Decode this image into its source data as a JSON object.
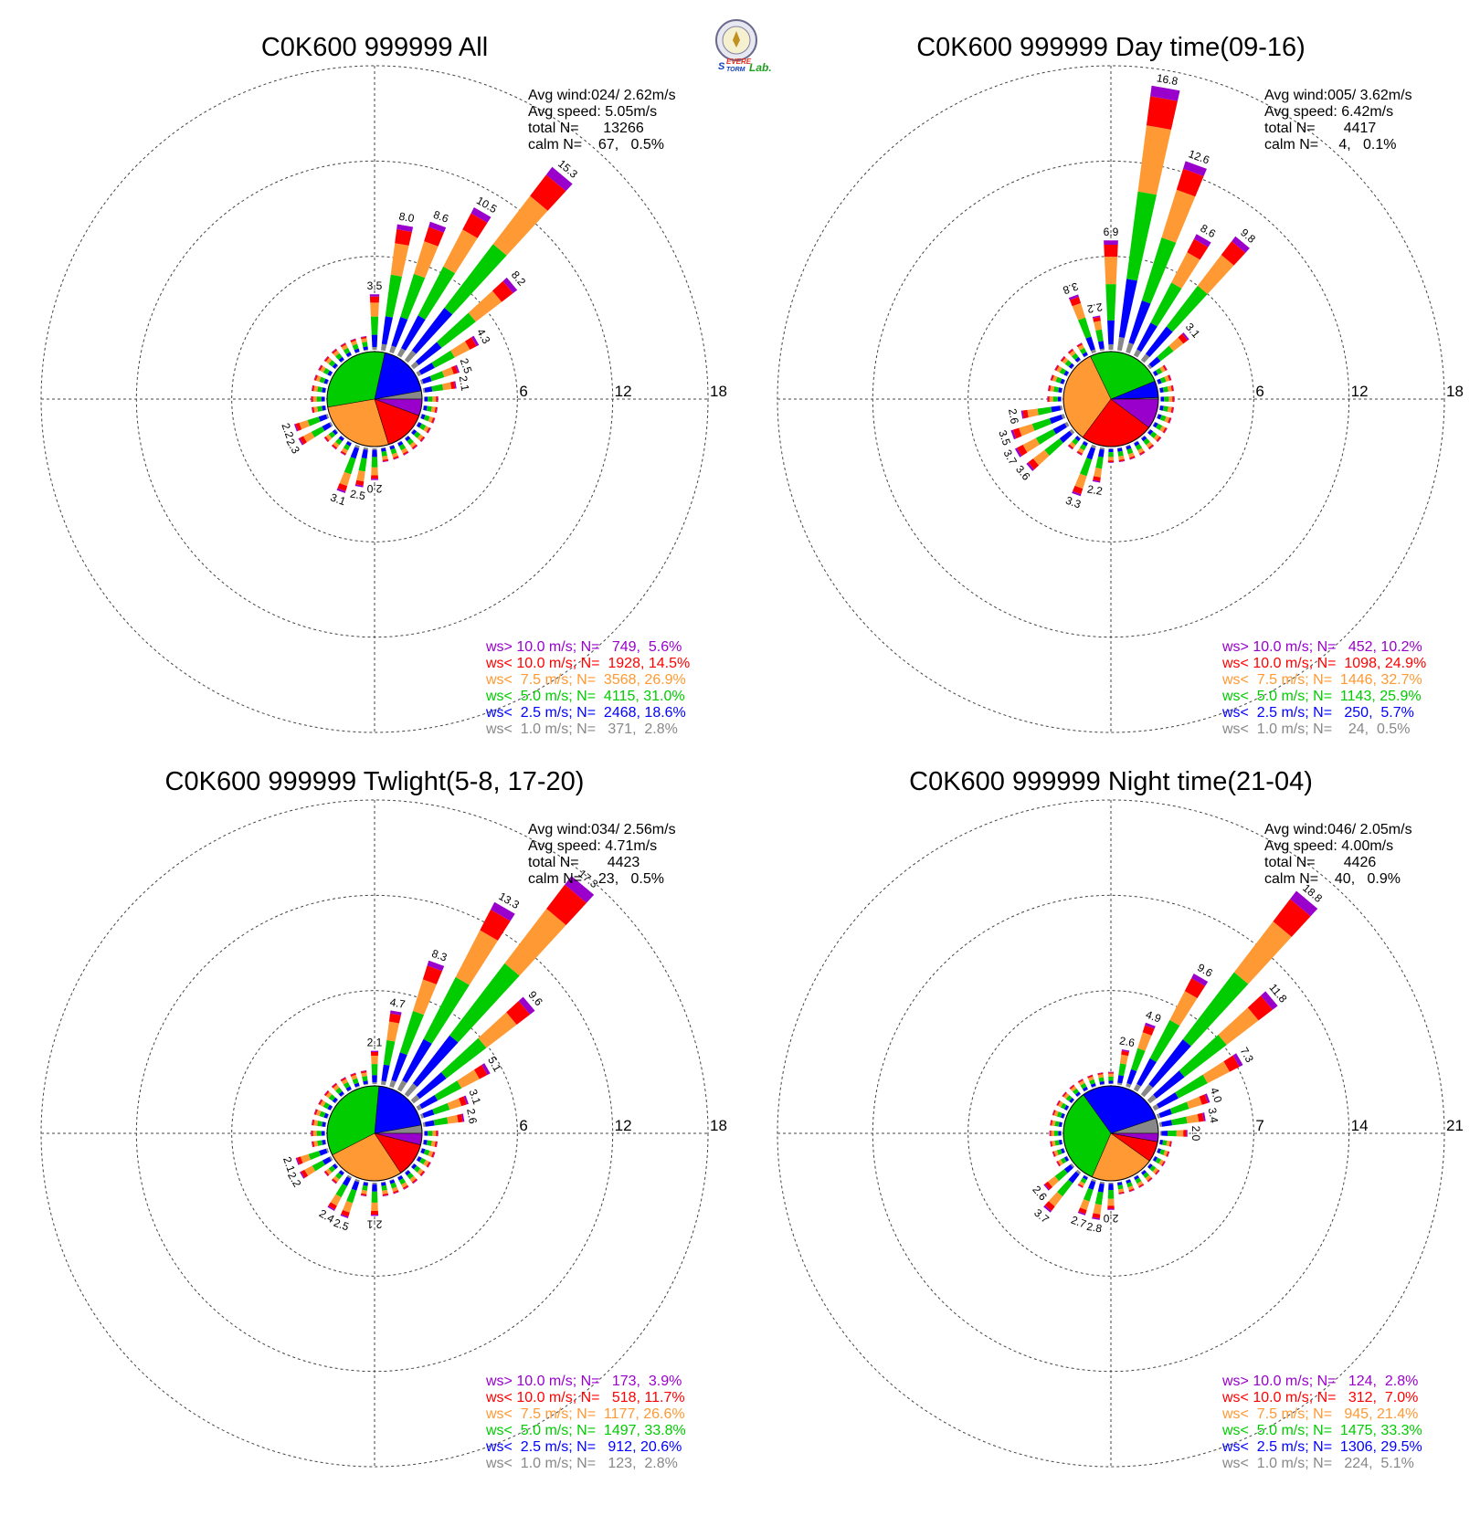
{
  "logo": {
    "name": "severe-storm-lab-logo",
    "line1": "SEVERE",
    "line2": "STORM",
    "line3": "Lab."
  },
  "colors": {
    "gt10": "#9900cc",
    "lt10": "#ff0000",
    "lt7_5": "#ff9933",
    "lt5": "#00cc00",
    "lt2_5": "#0000ff",
    "lt1": "#888888"
  },
  "chart_data": [
    {
      "type": "windrose",
      "title": "C0K600 999999 All",
      "ticks": [
        "6",
        "12",
        "18"
      ],
      "rmax": 18,
      "stats": [
        "Avg wind:024/ 2.62m/s",
        "Avg speed: 5.05m/s",
        "total N=      13266",
        "calm N=    67,   0.5%"
      ],
      "legend": [
        {
          "text": "ws> 10.0 m/s; N=   749,  5.6%",
          "color": "#9900cc"
        },
        {
          "text": "ws< 10.0 m/s; N=  1928, 14.5%",
          "color": "#ff0000"
        },
        {
          "text": "ws<  7.5 m/s; N=  3568, 26.9%",
          "color": "#ff9933"
        },
        {
          "text": "ws<  5.0 m/s; N=  4115, 31.0%",
          "color": "#00cc00"
        },
        {
          "text": "ws<  2.5 m/s; N=  2468, 18.6%",
          "color": "#0000ff"
        },
        {
          "text": "ws<  1.0 m/s; N=   371,  2.8%",
          "color": "#888888"
        }
      ],
      "pie": [
        2.8,
        18.6,
        31.0,
        26.9,
        14.5,
        5.6
      ],
      "petals": [
        {
          "dir": 0,
          "total": 3.5,
          "label": "3.5"
        },
        {
          "dir": 10,
          "total": 8.0,
          "label": "8.0"
        },
        {
          "dir": 20,
          "total": 8.6,
          "label": "8.6"
        },
        {
          "dir": 30,
          "total": 10.5,
          "label": "10.5"
        },
        {
          "dir": 40,
          "total": 15.3,
          "label": "15.3"
        },
        {
          "dir": 50,
          "total": 8.2,
          "label": "8.2"
        },
        {
          "dir": 60,
          "total": 4.3,
          "label": "4.3"
        },
        {
          "dir": 70,
          "total": 2.5,
          "label": "2.5"
        },
        {
          "dir": 80,
          "total": 2.1,
          "label": "2.1"
        },
        {
          "dir": 200,
          "total": 3.1,
          "label": "3.1"
        },
        {
          "dir": 190,
          "total": 2.5,
          "label": "2.5"
        },
        {
          "dir": 180,
          "total": 2.0,
          "label": "2.0"
        },
        {
          "dir": 240,
          "total": 2.3,
          "label": "2.3"
        },
        {
          "dir": 250,
          "total": 2.2,
          "label": "2.2"
        }
      ]
    },
    {
      "type": "windrose",
      "title": "C0K600 999999 Day time(09-16)",
      "ticks": [
        "6",
        "12",
        "18"
      ],
      "rmax": 18,
      "stats": [
        "Avg wind:005/ 3.62m/s",
        "Avg speed: 6.42m/s",
        "total N=       4417",
        "calm N=     4,   0.1%"
      ],
      "legend": [
        {
          "text": "ws> 10.0 m/s; N=   452, 10.2%",
          "color": "#9900cc"
        },
        {
          "text": "ws< 10.0 m/s; N=  1098, 24.9%",
          "color": "#ff0000"
        },
        {
          "text": "ws<  7.5 m/s; N=  1446, 32.7%",
          "color": "#ff9933"
        },
        {
          "text": "ws<  5.0 m/s; N=  1143, 25.9%",
          "color": "#00cc00"
        },
        {
          "text": "ws<  2.5 m/s; N=   250,  5.7%",
          "color": "#0000ff"
        },
        {
          "text": "ws<  1.0 m/s; N=    24,  0.5%",
          "color": "#888888"
        }
      ],
      "pie": [
        0.5,
        5.7,
        25.9,
        32.7,
        24.9,
        10.2
      ],
      "petals": [
        {
          "dir": 350,
          "total": 2.2,
          "label": "2.2"
        },
        {
          "dir": 340,
          "total": 3.8,
          "label": "3.8"
        },
        {
          "dir": 0,
          "total": 6.9,
          "label": "6.9"
        },
        {
          "dir": 10,
          "total": 16.8,
          "label": "16.8"
        },
        {
          "dir": 20,
          "total": 12.6,
          "label": "12.6"
        },
        {
          "dir": 30,
          "total": 8.6,
          "label": "8.6"
        },
        {
          "dir": 40,
          "total": 9.8,
          "label": "9.8"
        },
        {
          "dir": 50,
          "total": 3.1,
          "label": "3.1"
        },
        {
          "dir": 200,
          "total": 3.3,
          "label": "3.3"
        },
        {
          "dir": 190,
          "total": 2.2,
          "label": "2.2"
        },
        {
          "dir": 230,
          "total": 3.6,
          "label": "3.6"
        },
        {
          "dir": 240,
          "total": 3.7,
          "label": "3.7"
        },
        {
          "dir": 250,
          "total": 3.5,
          "label": "3.5"
        },
        {
          "dir": 260,
          "total": 2.6,
          "label": "2.6"
        }
      ]
    },
    {
      "type": "windrose",
      "title": "C0K600 999999 Twlight(5-8, 17-20)",
      "ticks": [
        "6",
        "12",
        "18"
      ],
      "rmax": 18,
      "stats": [
        "Avg wind:034/ 2.56m/s",
        "Avg speed: 4.71m/s",
        "total N=       4423",
        "calm N=    23,   0.5%"
      ],
      "legend": [
        {
          "text": "ws> 10.0 m/s; N=   173,  3.9%",
          "color": "#9900cc"
        },
        {
          "text": "ws< 10.0 m/s; N=   518, 11.7%",
          "color": "#ff0000"
        },
        {
          "text": "ws<  7.5 m/s; N=  1177, 26.6%",
          "color": "#ff9933"
        },
        {
          "text": "ws<  5.0 m/s; N=  1497, 33.8%",
          "color": "#00cc00"
        },
        {
          "text": "ws<  2.5 m/s; N=   912, 20.6%",
          "color": "#0000ff"
        },
        {
          "text": "ws<  1.0 m/s; N=   123,  2.8%",
          "color": "#888888"
        }
      ],
      "pie": [
        2.8,
        20.6,
        33.8,
        26.6,
        11.7,
        3.9
      ],
      "petals": [
        {
          "dir": 0,
          "total": 2.1,
          "label": "2.1"
        },
        {
          "dir": 10,
          "total": 4.7,
          "label": "4.7"
        },
        {
          "dir": 20,
          "total": 8.3,
          "label": "8.3"
        },
        {
          "dir": 30,
          "total": 13.3,
          "label": "13.3"
        },
        {
          "dir": 40,
          "total": 17.3,
          "label": "17.3"
        },
        {
          "dir": 50,
          "total": 9.6,
          "label": "9.6"
        },
        {
          "dir": 60,
          "total": 5.1,
          "label": "5.1"
        },
        {
          "dir": 70,
          "total": 3.1,
          "label": "3.1"
        },
        {
          "dir": 80,
          "total": 2.6,
          "label": "2.6"
        },
        {
          "dir": 180,
          "total": 2.1,
          "label": "2.1"
        },
        {
          "dir": 200,
          "total": 2.5,
          "label": "2.5"
        },
        {
          "dir": 210,
          "total": 2.4,
          "label": "2.4"
        },
        {
          "dir": 240,
          "total": 2.2,
          "label": "2.2"
        },
        {
          "dir": 250,
          "total": 2.1,
          "label": "2.1"
        }
      ]
    },
    {
      "type": "windrose",
      "title": "C0K600 999999 Night time(21-04)",
      "ticks": [
        "7",
        "14",
        "21"
      ],
      "rmax": 21,
      "stats": [
        "Avg wind:046/ 2.05m/s",
        "Avg speed: 4.00m/s",
        "total N=       4426",
        "calm N=    40,   0.9%"
      ],
      "legend": [
        {
          "text": "ws> 10.0 m/s; N=   124,  2.8%",
          "color": "#9900cc"
        },
        {
          "text": "ws< 10.0 m/s; N=   312,  7.0%",
          "color": "#ff0000"
        },
        {
          "text": "ws<  7.5 m/s; N=   945, 21.4%",
          "color": "#ff9933"
        },
        {
          "text": "ws<  5.0 m/s; N=  1475, 33.3%",
          "color": "#00cc00"
        },
        {
          "text": "ws<  2.5 m/s; N=  1306, 29.5%",
          "color": "#0000ff"
        },
        {
          "text": "ws<  1.0 m/s; N=   224,  5.1%",
          "color": "#888888"
        }
      ],
      "pie": [
        5.1,
        29.5,
        33.3,
        21.4,
        7.0,
        2.8
      ],
      "petals": [
        {
          "dir": 10,
          "total": 2.6,
          "label": "2.6"
        },
        {
          "dir": 20,
          "total": 4.9,
          "label": "4.9"
        },
        {
          "dir": 30,
          "total": 9.6,
          "label": "9.6"
        },
        {
          "dir": 40,
          "total": 18.8,
          "label": "18.8"
        },
        {
          "dir": 50,
          "total": 11.8,
          "label": "11.8"
        },
        {
          "dir": 60,
          "total": 7.3,
          "label": "7.3"
        },
        {
          "dir": 70,
          "total": 4.0,
          "label": "4.0"
        },
        {
          "dir": 80,
          "total": 3.4,
          "label": "3.4"
        },
        {
          "dir": 90,
          "total": 2.0,
          "label": "2.0"
        },
        {
          "dir": 180,
          "total": 2.0,
          "label": "2.0"
        },
        {
          "dir": 190,
          "total": 2.8,
          "label": "2.8"
        },
        {
          "dir": 200,
          "total": 2.7,
          "label": "2.7"
        },
        {
          "dir": 220,
          "total": 3.7,
          "label": "3.7"
        },
        {
          "dir": 230,
          "total": 2.6,
          "label": "2.6"
        }
      ]
    }
  ]
}
